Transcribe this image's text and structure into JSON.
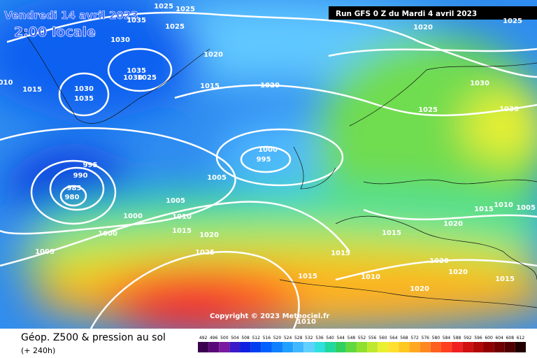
{
  "header": {
    "valid_time": "Vendredi 14 avril 2023",
    "local_time": "2:00 locale",
    "run": "Run GFS 0 Z du Mardi 4 avril 2023"
  },
  "isobar_labels": [
    "1025",
    "1025",
    "1035",
    "1025",
    "1030",
    "1020",
    "1035",
    "1030",
    "1025",
    "1030",
    "1035",
    "1015",
    "010",
    "1015",
    "1020",
    "1020",
    "1025",
    "1030",
    "1030",
    "1025",
    "1000",
    "995",
    "995",
    "990",
    "985",
    "980",
    "1005",
    "1005",
    "1000",
    "1010",
    "1015",
    "1000",
    "1020",
    "1025",
    "1005",
    "1015",
    "1015",
    "1015",
    "1010",
    "1005",
    "1020",
    "1020",
    "1020",
    "1015",
    "1010",
    "1020",
    "1015",
    "1010"
  ],
  "copyright": "Copyright © 2023 Meteociel.fr",
  "footer": {
    "title": "Géop. Z500 & pression au sol",
    "lead": "(+ 240h)"
  },
  "scale": {
    "ticks": [
      492,
      496,
      500,
      504,
      508,
      512,
      516,
      520,
      524,
      528,
      532,
      536,
      540,
      544,
      548,
      552,
      556,
      560,
      564,
      568,
      572,
      576,
      580,
      584,
      588,
      592,
      596,
      600,
      604,
      608,
      612
    ],
    "colors": [
      "#3c0050",
      "#5a0a78",
      "#7a1aa0",
      "#3a1ac8",
      "#1020e0",
      "#0040f0",
      "#0060ff",
      "#1080ff",
      "#20a0ff",
      "#40b8ff",
      "#60d0ff",
      "#30e0e0",
      "#20d8a0",
      "#30d060",
      "#60d840",
      "#90e030",
      "#c0e830",
      "#e8f030",
      "#ffe030",
      "#ffc820",
      "#ffa820",
      "#ff8820",
      "#ff6020",
      "#ff4020",
      "#f02020",
      "#d01010",
      "#b00808",
      "#900000",
      "#700000",
      "#500000",
      "#200000"
    ]
  }
}
